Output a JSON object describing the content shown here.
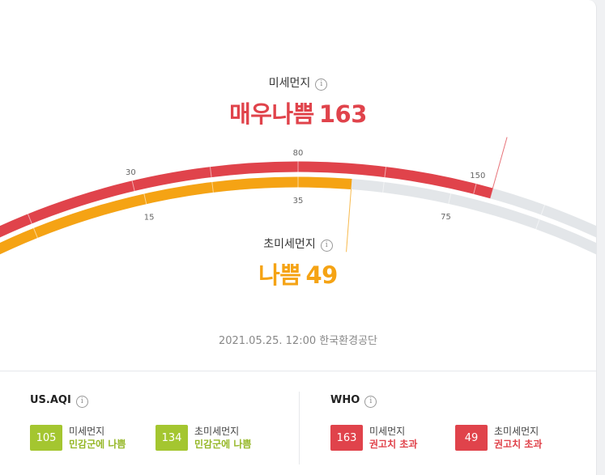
{
  "colors": {
    "pm10": "#e0434b",
    "pm25": "#f5a314",
    "track": "#e3e6e9",
    "aqi_sensitive": "#a4c630",
    "who_exceed": "#e0434b"
  },
  "pm10": {
    "title": "미세먼지",
    "info_icon": "info-icon",
    "grade": "매우나쁨",
    "value": "163",
    "level": 163
  },
  "pm25": {
    "title": "초미세먼지",
    "info_icon": "info-icon",
    "grade": "나쁨",
    "value": "49",
    "level": 49
  },
  "gauge": {
    "outer_ticks": [
      {
        "value": 30,
        "label": "30"
      },
      {
        "value": 80,
        "label": "80"
      },
      {
        "value": 150,
        "label": "150"
      }
    ],
    "inner_ticks": [
      {
        "value": 15,
        "label": "15"
      },
      {
        "value": 35,
        "label": "35"
      },
      {
        "value": 75,
        "label": "75"
      }
    ]
  },
  "timestamp": "2021.05.25. 12:00 한국환경공단",
  "us_aqi": {
    "title": "US.AQI",
    "items": [
      {
        "value": "105",
        "label": "미세먼지",
        "status": "민감군에 나쁨"
      },
      {
        "value": "134",
        "label": "초미세먼지",
        "status": "민감군에 나쁨"
      }
    ]
  },
  "who": {
    "title": "WHO",
    "items": [
      {
        "value": "163",
        "label": "미세먼지",
        "status": "권고치 초과"
      },
      {
        "value": "49",
        "label": "초미세먼지",
        "status": "권고치 초과"
      }
    ]
  }
}
